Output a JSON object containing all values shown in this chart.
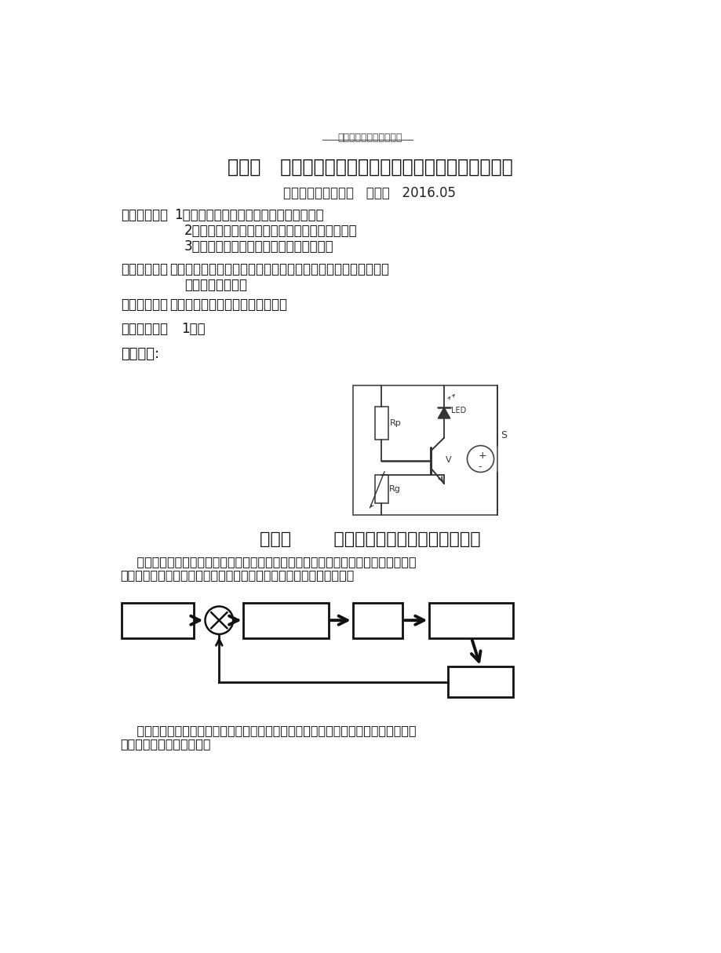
{
  "bg_color": "#ffffff",
  "top_note": "优秀学习资料＿欢迎下载",
  "main_title": "第五章   第二节《闭环电子控制系统的设计和应用》学案",
  "subtitle": "浙江省武义第二中学   程妙仙   2016.05",
  "objectives_label": "【学习目标】",
  "objectives": [
    "1、理解简单闭环电子控制系统的工作原理",
    "2、掌握简单闭环电子控制系统设计、安装与调试",
    "3、掌握安装过程中常见问题的分析和解决"
  ],
  "key_label": "【学习重点】",
  "key_line1": "简单闭环电子控制系统设计、安装与调试及安装过程中常见问题",
  "key_line2": "的分析和解决方法",
  "difficult_label": "【学习难点】",
  "difficult_text": "安装过程中常见问题的分析和解决",
  "schedule_label": "【课时安排】",
  "schedule_text": "1课时",
  "review_label": "温故知新:",
  "section_title": "第二节       闭环电子控制系统的设计和应用",
  "para1_line1": "    闭环电子控制系统与开环电子控制系统不同，它能对输出结果进行检测，并将检测信",
  "para1_line2": "号反馈到控制处理部分，从而对系统的控制产生影响。它的方框图为：",
  "para2_line1": "    常见的闭环电子控制系统有家用电冰箱、空调、电热水器、太阳能热水器、智能电饭",
  "para2_line2": "锅、现代化农业温室等等。"
}
